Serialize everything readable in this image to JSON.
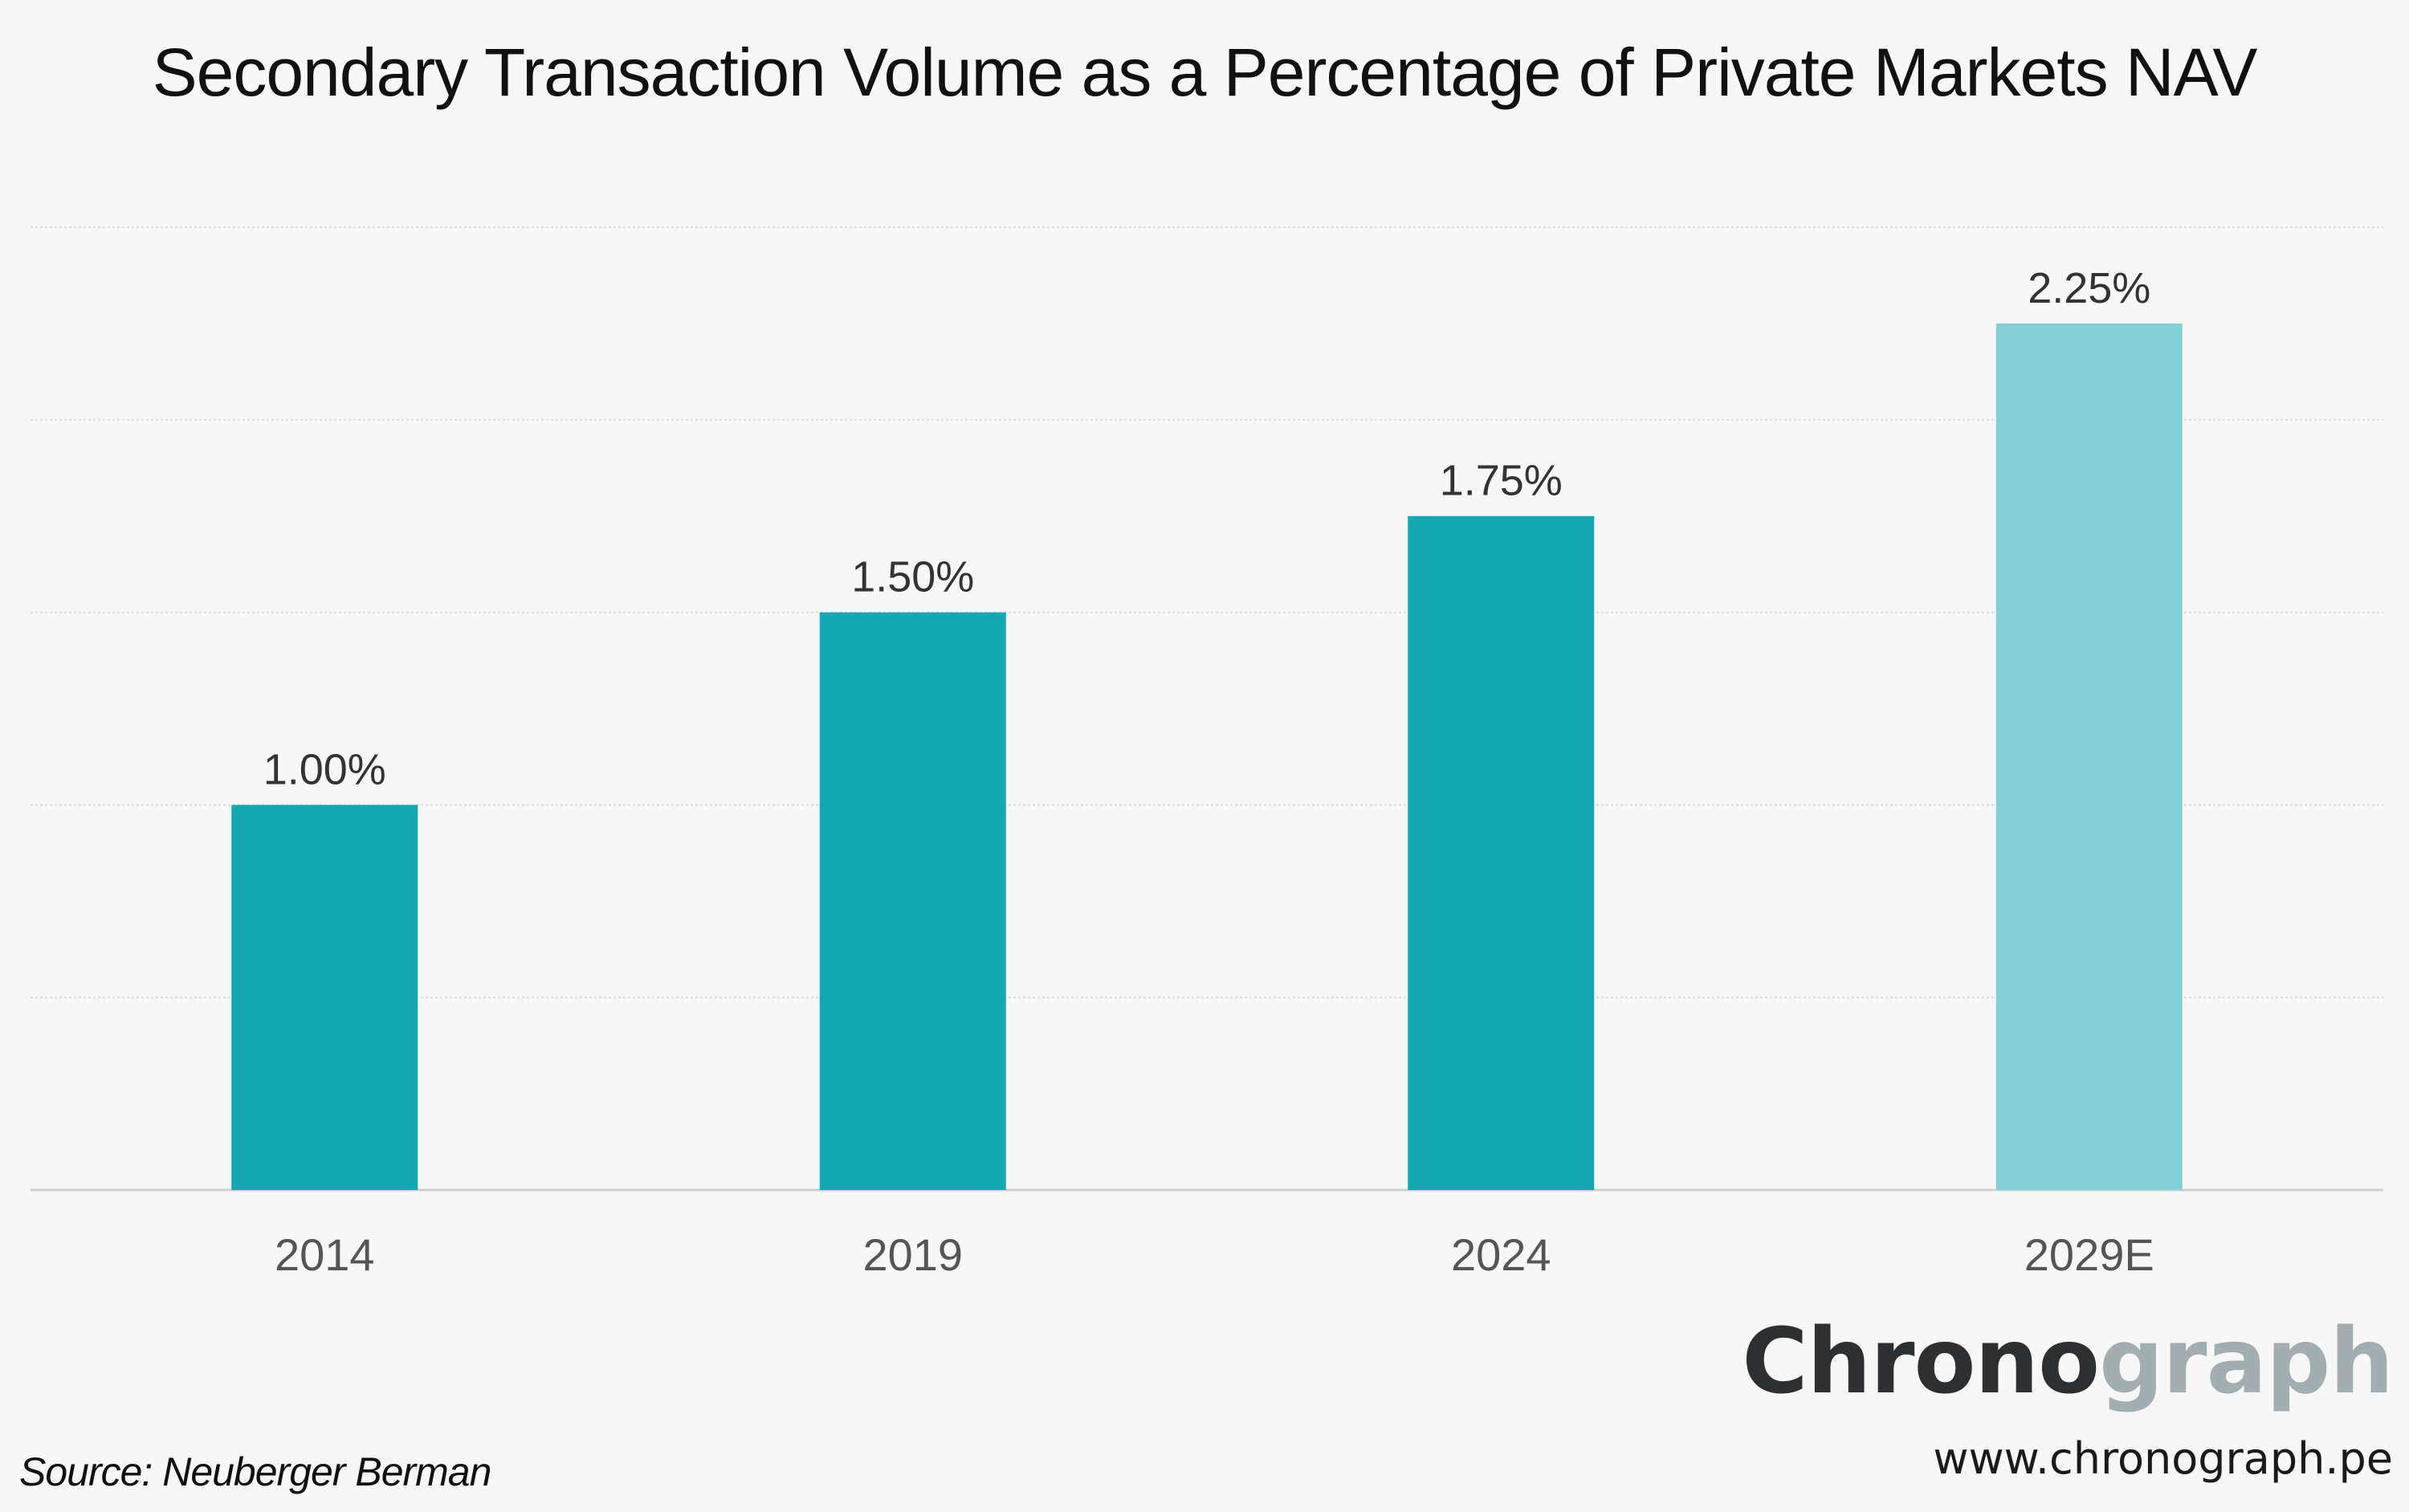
{
  "chart_data": {
    "type": "bar",
    "title": "Secondary Transaction Volume as a Percentage of Private Markets NAV",
    "categories": [
      "2014",
      "2019",
      "2024",
      "2029E"
    ],
    "values": [
      1.0,
      1.5,
      1.75,
      2.25
    ],
    "value_labels": [
      "1.00%",
      "1.50%",
      "1.75%",
      "2.25%"
    ],
    "estimated": [
      false,
      false,
      false,
      true
    ],
    "xlabel": "",
    "ylabel": "",
    "ylim": [
      0,
      2.5
    ],
    "grid": true,
    "gridline_step": 0.5,
    "colors": {
      "bar": "#13a8b2",
      "bar_estimate": "#83d1d6",
      "grid": "#dddddd",
      "axis": "#cfcfcf",
      "tick_label": "#555555",
      "value_label": "#333333"
    }
  },
  "footer": {
    "source": "Source: Neuberger Berman"
  },
  "brand": {
    "name_part1": "Chrono",
    "name_part2": "graph",
    "url": "www.chronograph.pe"
  }
}
